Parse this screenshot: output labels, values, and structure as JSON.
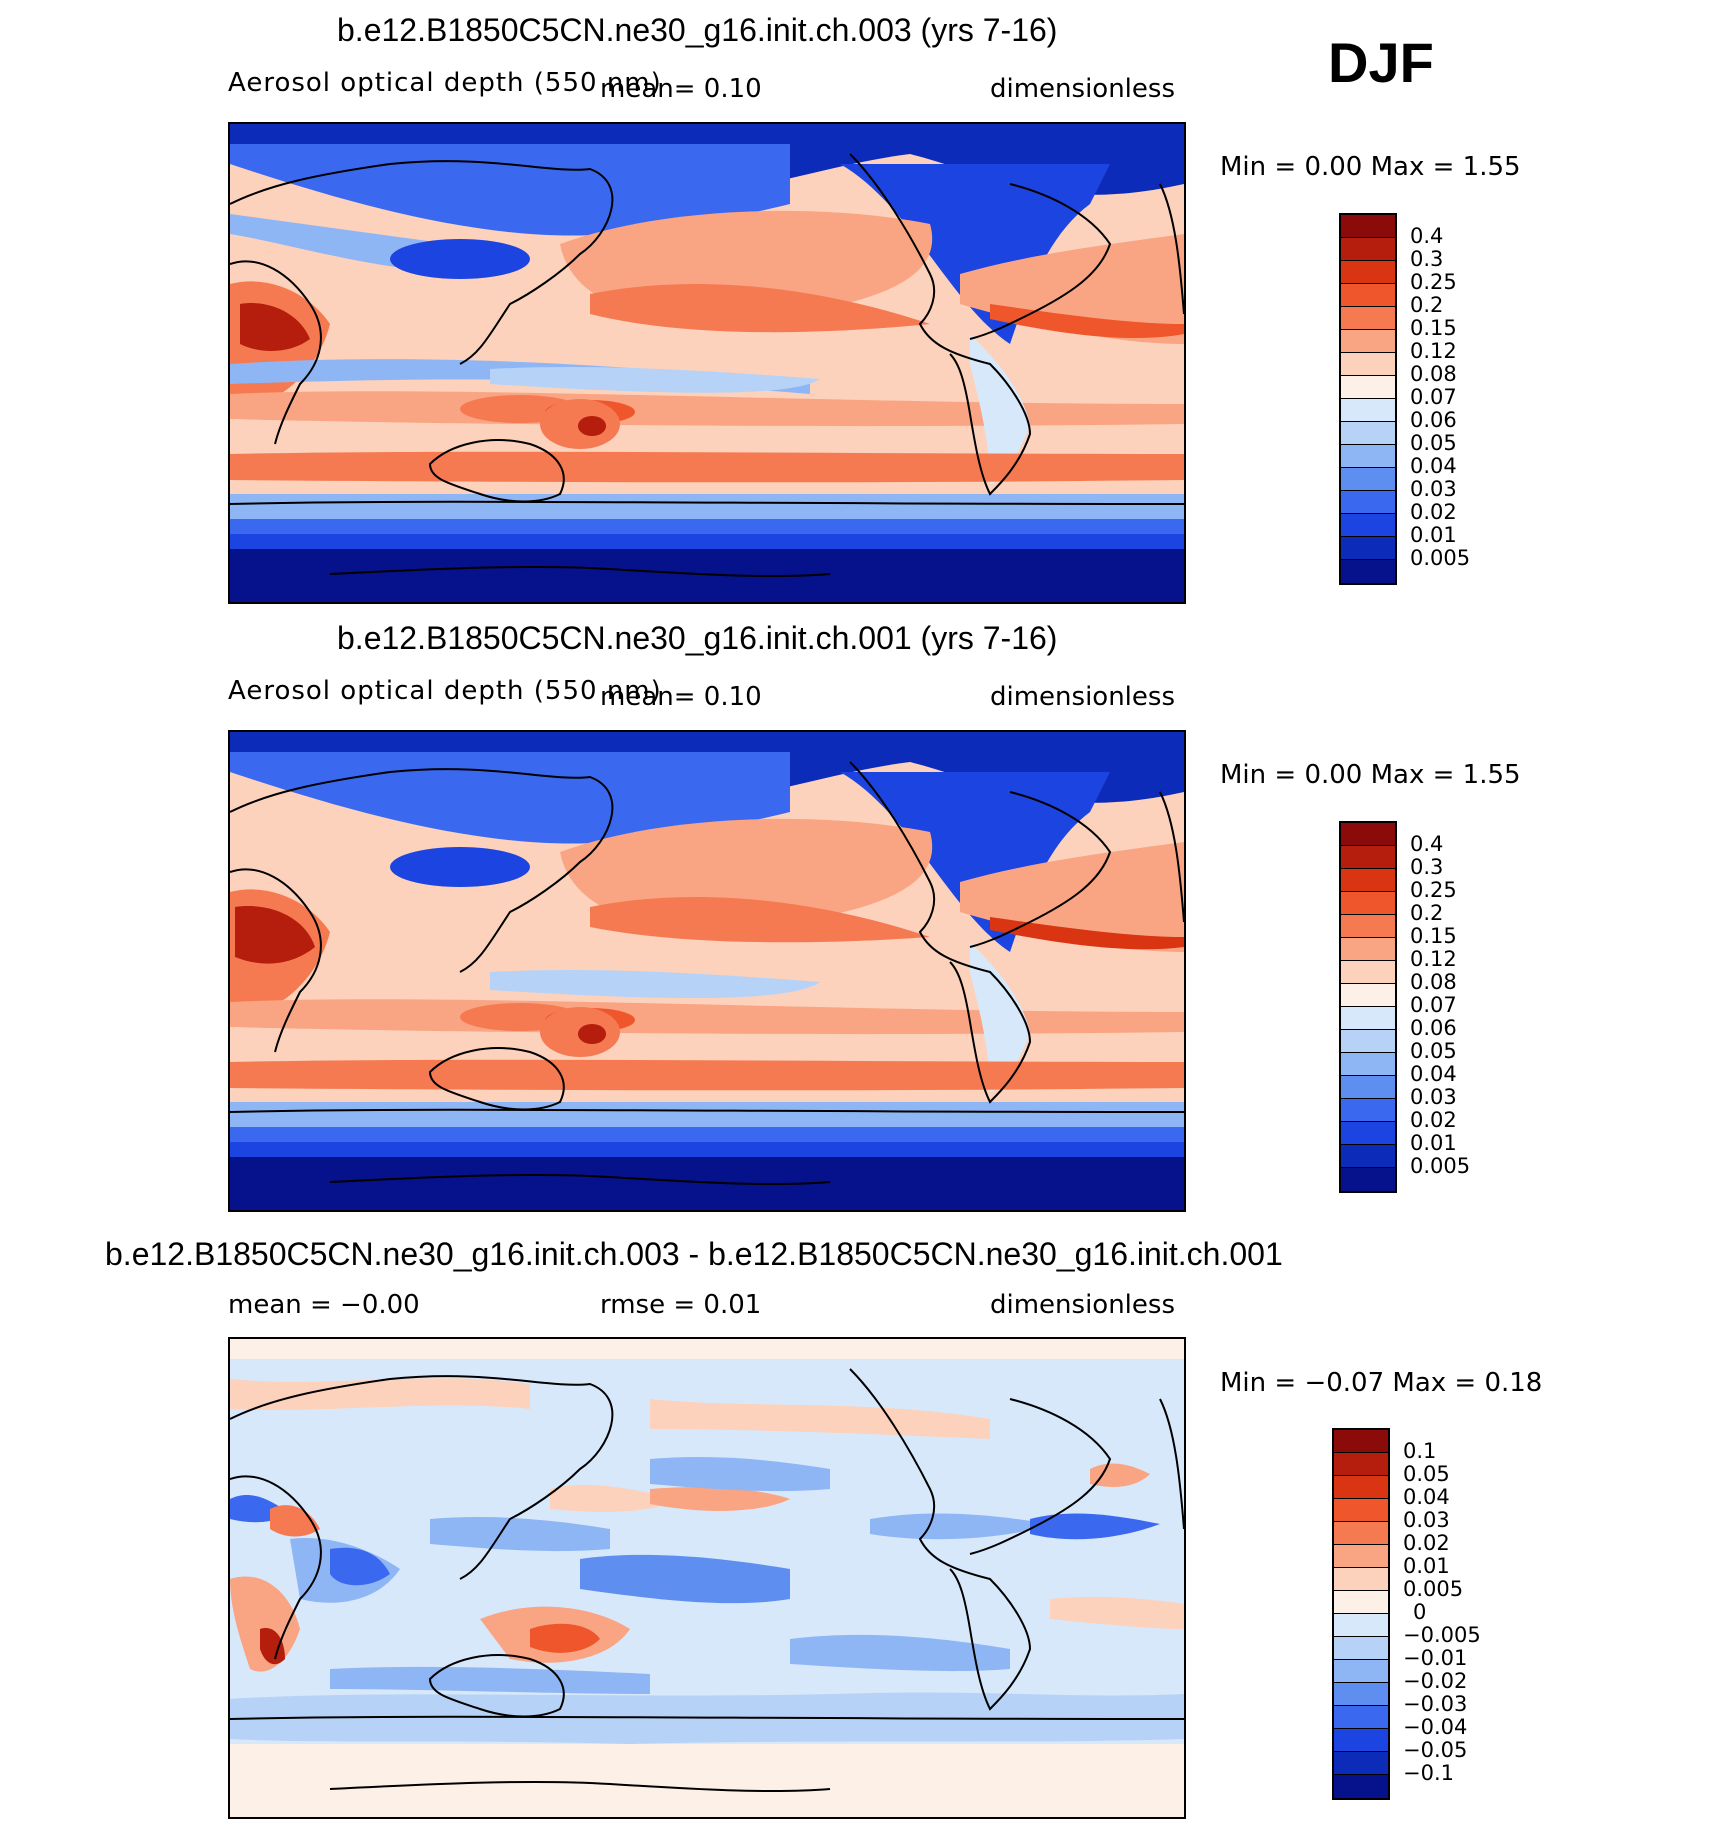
{
  "season": "DJF",
  "panels": [
    {
      "id": "top",
      "title": "b.e12.B1850C5CN.ne30_g16.init.ch.003 (yrs 7-16)",
      "left_text": "Aerosol optical depth (550 nm)",
      "center_text": "mean=    0.10",
      "right_text": "dimensionless",
      "minmax_text": "Min =    0.00 Max =    1.55",
      "colorbar": {
        "colors": [
          "#8b0a0a",
          "#b51d0c",
          "#d93512",
          "#f0562c",
          "#f57a52",
          "#f9a583",
          "#fcd2bc",
          "#fdf0e6",
          "#d8e8fb",
          "#b6d3f7",
          "#8fb6f4",
          "#5e8ff0",
          "#3a69ef",
          "#1c44e0",
          "#0c2bb8",
          "#05128c"
        ],
        "labels": [
          "0.4",
          "0.3",
          "0.25",
          "0.2",
          "0.15",
          "0.12",
          "0.08",
          "0.07",
          "0.06",
          "0.05",
          "0.04",
          "0.03",
          "0.02",
          "0.01",
          "0.005"
        ]
      }
    },
    {
      "id": "middle",
      "title": "b.e12.B1850C5CN.ne30_g16.init.ch.001 (yrs 7-16)",
      "left_text": "Aerosol optical depth (550 nm)",
      "center_text": "mean=    0.10",
      "right_text": "dimensionless",
      "minmax_text": "Min =    0.00 Max =    1.55",
      "colorbar": {
        "colors": [
          "#8b0a0a",
          "#b51d0c",
          "#d93512",
          "#f0562c",
          "#f57a52",
          "#f9a583",
          "#fcd2bc",
          "#fdf0e6",
          "#d8e8fb",
          "#b6d3f7",
          "#8fb6f4",
          "#5e8ff0",
          "#3a69ef",
          "#1c44e0",
          "#0c2bb8",
          "#05128c"
        ],
        "labels": [
          "0.4",
          "0.3",
          "0.25",
          "0.2",
          "0.15",
          "0.12",
          "0.08",
          "0.07",
          "0.06",
          "0.05",
          "0.04",
          "0.03",
          "0.02",
          "0.01",
          "0.005"
        ]
      }
    },
    {
      "id": "bottom",
      "title": "b.e12.B1850C5CN.ne30_g16.init.ch.003 - b.e12.B1850C5CN.ne30_g16.init.ch.001",
      "left_text": "mean =   −0.00",
      "center_text": "rmse =    0.01",
      "right_text": "dimensionless",
      "minmax_text": "Min =   −0.07 Max =    0.18",
      "colorbar": {
        "colors": [
          "#8b0a0a",
          "#b51d0c",
          "#d93512",
          "#f0562c",
          "#f57a52",
          "#f9a583",
          "#fcd2bc",
          "#fdf0e6",
          "#d8e8fb",
          "#b6d3f7",
          "#8fb6f4",
          "#5e8ff0",
          "#3a69ef",
          "#1c44e0",
          "#0c2bb8",
          "#05128c"
        ],
        "labels": [
          "0.1",
          "0.05",
          "0.04",
          "0.03",
          "0.02",
          "0.01",
          "0.005",
          "0",
          "−0.005",
          "−0.01",
          "−0.02",
          "−0.03",
          "−0.04",
          "−0.05",
          "−0.1"
        ]
      }
    }
  ]
}
